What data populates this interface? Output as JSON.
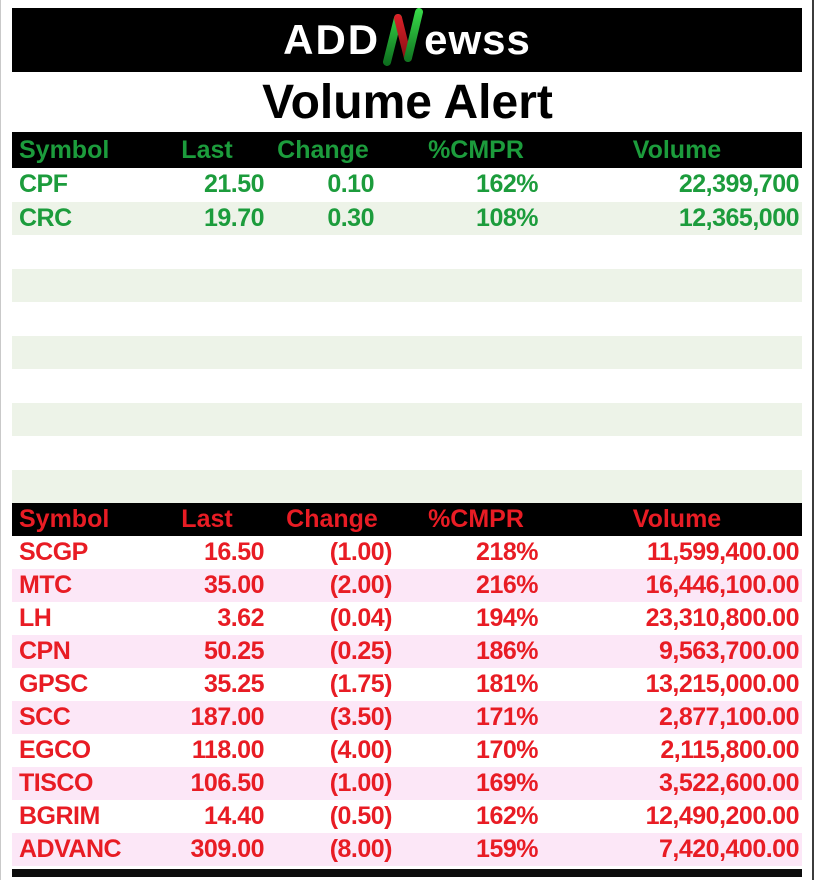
{
  "logo": {
    "prefix": "ADD",
    "n_icon": "candlestick-n",
    "suffix": "ewss"
  },
  "title": "Volume Alert",
  "colors": {
    "header_bg": "#000000",
    "gainers_text": "#1c9c3c",
    "gainers_stripe": "#edf3e8",
    "losers_text": "#e81c24",
    "losers_stripe": "#fce7f7",
    "logo_green_top": "#39dd4a",
    "logo_green_bottom": "#0c6b1d",
    "logo_red_top": "#e8232b",
    "logo_red_bottom": "#7a0d12"
  },
  "chart_data": [
    {
      "type": "table",
      "title": "Volume Alert — gainers",
      "columns": [
        "Symbol",
        "Last",
        "Change",
        "%CMPR",
        "Volume"
      ],
      "rows": [
        [
          "CPF",
          "21.50",
          "0.10",
          "162%",
          "22,399,700"
        ],
        [
          "CRC",
          "19.70",
          "0.30",
          "108%",
          "12,365,000"
        ]
      ],
      "empty_rows": 8
    },
    {
      "type": "table",
      "title": "Volume Alert — losers",
      "columns": [
        "Symbol",
        "Last",
        "Change",
        "%CMPR",
        "Volume"
      ],
      "rows": [
        [
          "SCGP",
          "16.50",
          "(1.00)",
          "218%",
          "11,599,400.00"
        ],
        [
          "MTC",
          "35.00",
          "(2.00)",
          "216%",
          "16,446,100.00"
        ],
        [
          "LH",
          "3.62",
          "(0.04)",
          "194%",
          "23,310,800.00"
        ],
        [
          "CPN",
          "50.25",
          "(0.25)",
          "186%",
          "9,563,700.00"
        ],
        [
          "GPSC",
          "35.25",
          "(1.75)",
          "181%",
          "13,215,000.00"
        ],
        [
          "SCC",
          "187.00",
          "(3.50)",
          "171%",
          "2,877,100.00"
        ],
        [
          "EGCO",
          "118.00",
          "(4.00)",
          "170%",
          "2,115,800.00"
        ],
        [
          "TISCO",
          "106.50",
          "(1.00)",
          "169%",
          "3,522,600.00"
        ],
        [
          "BGRIM",
          "14.40",
          "(0.50)",
          "162%",
          "12,490,200.00"
        ],
        [
          "ADVANC",
          "309.00",
          "(8.00)",
          "159%",
          "7,420,400.00"
        ]
      ],
      "empty_rows": 0
    }
  ]
}
